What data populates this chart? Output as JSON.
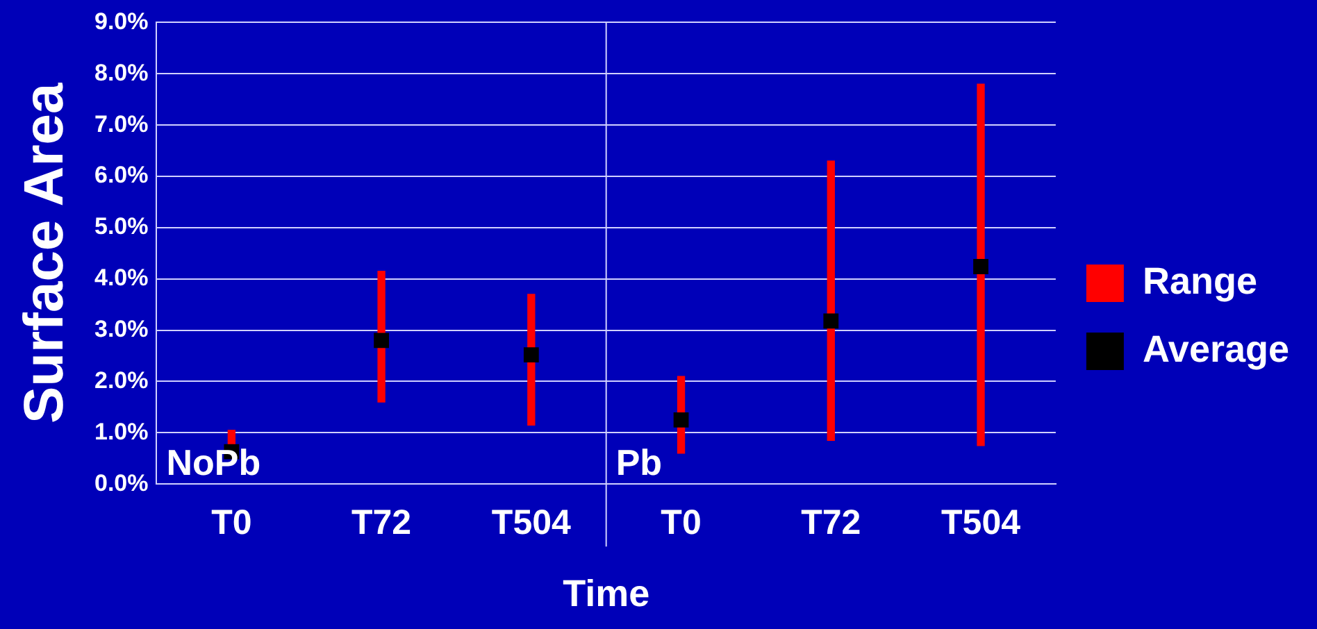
{
  "chart_data": {
    "type": "bar",
    "xlabel": "Time",
    "ylabel": "Surface Area",
    "categories": [
      "T0",
      "T72",
      "T504",
      "T0",
      "T72",
      "T504"
    ],
    "annotations": [
      "NoPb",
      "Pb"
    ],
    "series": [
      {
        "name": "Range",
        "color": "#ff0000",
        "base": [
          0.5,
          1.6,
          1.15,
          0.6,
          0.85,
          0.75
        ],
        "values": [
          0.55,
          2.55,
          2.55,
          1.5,
          5.45,
          7.05
        ]
      },
      {
        "name": "Average",
        "type": "scatter",
        "color": "#000000",
        "marker": "square",
        "values": [
          0.63,
          2.8,
          2.52,
          1.25,
          3.18,
          4.24
        ]
      }
    ],
    "ylim": [
      0,
      9
    ],
    "yticks": [
      {
        "value": 0,
        "label": "0.0%"
      },
      {
        "value": 1,
        "label": "1.0%"
      },
      {
        "value": 2,
        "label": "2.0%"
      },
      {
        "value": 3,
        "label": "3.0%"
      },
      {
        "value": 4,
        "label": "4.0%"
      },
      {
        "value": 5,
        "label": "5.0%"
      },
      {
        "value": 6,
        "label": "6.0%"
      },
      {
        "value": 7,
        "label": "7.0%"
      },
      {
        "value": 8,
        "label": "8.0%"
      },
      {
        "value": 9,
        "label": "9.0%"
      }
    ],
    "grid": "y",
    "legend": "right"
  }
}
